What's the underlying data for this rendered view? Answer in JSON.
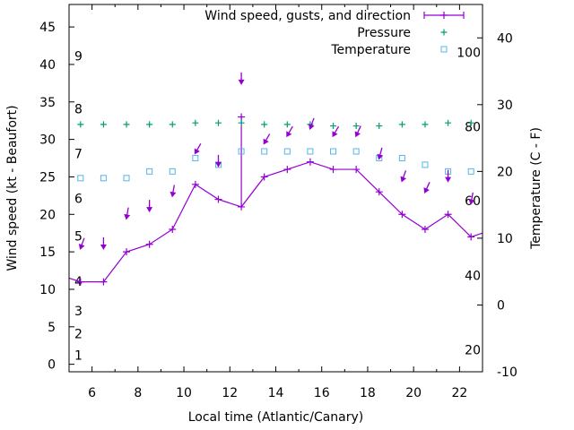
{
  "chart_data": {
    "type": "line",
    "title": "",
    "xlabel": "Local time (Atlantic/Canary)",
    "ylabel": "Wind speed (kt - Beaufort)",
    "y2label": "Temperature (C - F)",
    "xlim": [
      5,
      23
    ],
    "ylim": [
      -1,
      48
    ],
    "y2lim": [
      -10,
      45
    ],
    "grid": false,
    "legend_position": "top-right",
    "x_ticks": [
      "6",
      "8",
      "10",
      "12",
      "14",
      "16",
      "18",
      "20",
      "22"
    ],
    "y_ticks": [
      "0",
      "5",
      "10",
      "15",
      "20",
      "25",
      "30",
      "35",
      "40",
      "45"
    ],
    "y2_ticks": [
      "-10",
      "0",
      "10",
      "20",
      "30",
      "40"
    ],
    "beaufort_labels": [
      {
        "text": "1",
        "y": 1.2
      },
      {
        "text": "2",
        "y": 4.1
      },
      {
        "text": "3",
        "y": 7.1
      },
      {
        "text": "4",
        "y": 11.1
      },
      {
        "text": "5",
        "y": 17.1
      },
      {
        "text": "6",
        "y": 22.1
      },
      {
        "text": "7",
        "y": 28.1
      },
      {
        "text": "8",
        "y": 34.1
      },
      {
        "text": "9",
        "y": 41.1
      }
    ],
    "fahrenheit_labels": [
      {
        "text": "20",
        "y2": -6.7
      },
      {
        "text": "40",
        "y2": 4.4
      },
      {
        "text": "60",
        "y2": 15.6
      },
      {
        "text": "80",
        "y2": 26.7
      },
      {
        "text": "100",
        "y2": 37.8
      }
    ],
    "series": [
      {
        "name": "Wind speed, gusts, and direction",
        "color": "#9400d3",
        "x": [
          5,
          5.5,
          6.5,
          7.5,
          8.5,
          9.5,
          10.5,
          11.5,
          12.5,
          12.5,
          12.5,
          13.5,
          14.5,
          15.5,
          16.5,
          17.5,
          18.5,
          19.5,
          20.5,
          21.5,
          22.5,
          23
        ],
        "values": [
          11.5,
          11,
          11,
          15,
          16,
          18,
          24,
          22,
          21,
          33,
          21,
          25,
          26,
          27,
          26,
          26,
          23,
          20,
          18,
          20,
          17,
          17.5
        ],
        "markers_x": [
          5.5,
          6.5,
          7.5,
          8.5,
          9.5,
          10.5,
          11.5,
          12.5,
          12.5,
          13.5,
          14.5,
          15.5,
          16.5,
          17.5,
          18.5,
          19.5,
          20.5,
          21.5,
          22.5
        ],
        "markers_y": [
          11,
          11,
          15,
          16,
          18,
          24,
          22,
          21,
          33,
          25,
          26,
          27,
          26,
          26,
          23,
          20,
          18,
          20,
          17
        ]
      },
      {
        "name": "Pressure",
        "color": "#009e73",
        "x": [
          5.5,
          6.5,
          7.5,
          8.5,
          9.5,
          10.5,
          11.5,
          12.5,
          13.5,
          14.5,
          15.5,
          16.5,
          17.5,
          18.5,
          19.5,
          20.5,
          21.5,
          22.5
        ],
        "values": [
          32,
          32,
          32,
          32,
          32,
          32.2,
          32.2,
          32.2,
          32,
          32,
          32,
          31.8,
          31.8,
          31.8,
          32,
          32,
          32.2,
          32.2
        ]
      },
      {
        "name": "Temperature",
        "color": "#56b4e9",
        "axis": "y2",
        "x": [
          5.5,
          6.5,
          7.5,
          8.5,
          9.5,
          10.5,
          11.5,
          12.5,
          13.5,
          14.5,
          15.5,
          16.5,
          17.5,
          18.5,
          19.5,
          20.5,
          21.5,
          22.5
        ],
        "values": [
          19,
          19,
          19,
          20,
          20,
          22,
          21,
          23,
          23,
          23,
          23,
          23,
          23,
          22,
          22,
          21,
          20,
          20
        ]
      }
    ],
    "wind_arrows": [
      {
        "x": 5.5,
        "y": 15.5,
        "direction_deg": 20
      },
      {
        "x": 6.5,
        "y": 15.5,
        "direction_deg": 0
      },
      {
        "x": 7.5,
        "y": 19.5,
        "direction_deg": 10
      },
      {
        "x": 8.5,
        "y": 20.5,
        "direction_deg": 0
      },
      {
        "x": 9.5,
        "y": 22.5,
        "direction_deg": 10
      },
      {
        "x": 10.5,
        "y": 28.2,
        "direction_deg": 30
      },
      {
        "x": 11.5,
        "y": 26.5,
        "direction_deg": 0
      },
      {
        "x": 12.5,
        "y": 37.5,
        "direction_deg": 0
      },
      {
        "x": 13.5,
        "y": 29.5,
        "direction_deg": 30
      },
      {
        "x": 14.5,
        "y": 30.5,
        "direction_deg": 30
      },
      {
        "x": 15.5,
        "y": 31.5,
        "direction_deg": 20
      },
      {
        "x": 16.5,
        "y": 30.5,
        "direction_deg": 30
      },
      {
        "x": 17.5,
        "y": 30.5,
        "direction_deg": 25
      },
      {
        "x": 18.5,
        "y": 27.5,
        "direction_deg": 15
      },
      {
        "x": 19.5,
        "y": 24.5,
        "direction_deg": 20
      },
      {
        "x": 20.5,
        "y": 23,
        "direction_deg": 25
      },
      {
        "x": 21.5,
        "y": 24.5,
        "direction_deg": 0
      },
      {
        "x": 22.5,
        "y": 21.5,
        "direction_deg": 10
      }
    ]
  }
}
